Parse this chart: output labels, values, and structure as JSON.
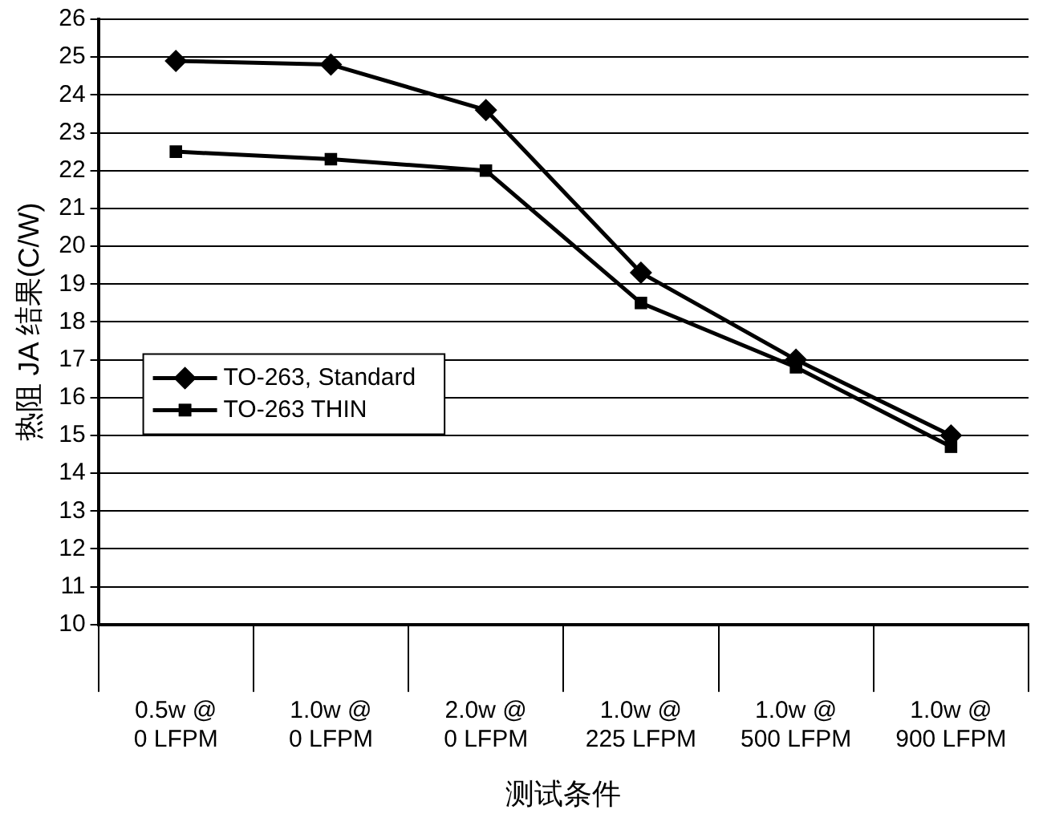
{
  "chart_data": {
    "type": "line",
    "xlabel": "测试条件",
    "ylabel": "热阻 JA 结果(C/W)",
    "categories": [
      "0.5w @\n0 LFPM",
      "1.0w @\n0 LFPM",
      "2.0w @\n0 LFPM",
      "1.0w @\n225 LFPM",
      "1.0w @\n500 LFPM",
      "1.0w @\n900 LFPM"
    ],
    "series": [
      {
        "name": "TO-263, Standard",
        "color": "#000000",
        "marker": "diamond",
        "values": [
          24.9,
          24.8,
          23.6,
          19.3,
          17.0,
          15.0
        ]
      },
      {
        "name": "TO-263 THIN",
        "color": "#000000",
        "marker": "square",
        "values": [
          22.5,
          22.3,
          22.0,
          18.5,
          16.8,
          14.7
        ]
      }
    ],
    "ylim": [
      10,
      26
    ],
    "yticks": [
      10,
      11,
      12,
      13,
      14,
      15,
      16,
      17,
      18,
      19,
      20,
      21,
      22,
      23,
      24,
      25,
      26
    ],
    "grid": "y",
    "legend": "left",
    "line_style": "solid"
  }
}
